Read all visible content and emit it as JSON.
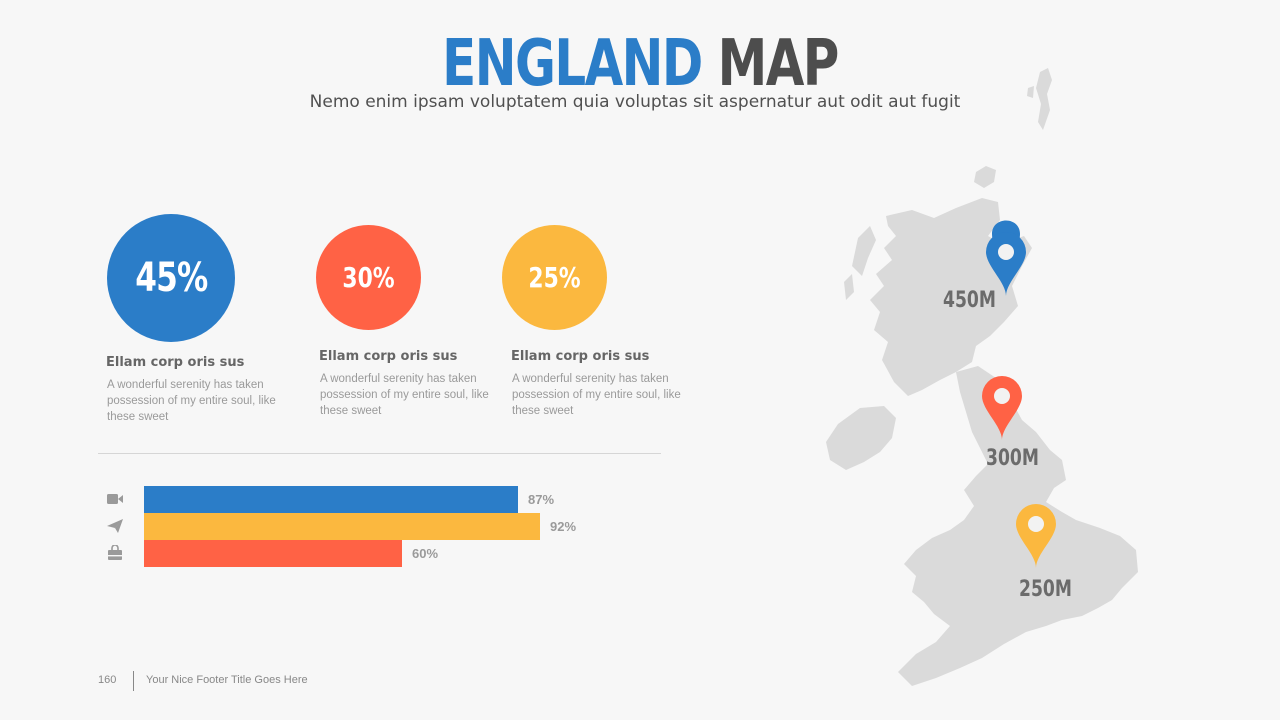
{
  "header": {
    "title_word1": "ENGLAND",
    "title_word2": "MAP",
    "subtitle": "Nemo enim ipsam voluptatem quia voluptas sit aspernatur aut odit aut fugit"
  },
  "stats": [
    {
      "value": "45%",
      "heading": "Ellam corp oris sus",
      "description": "A wonderful serenity has taken possession of my entire soul, like these sweet",
      "color": "#2b7dc8"
    },
    {
      "value": "30%",
      "heading": "Ellam corp oris sus",
      "description": "A wonderful serenity has taken possession of my entire soul, like these sweet",
      "color": "#ff6245"
    },
    {
      "value": "25%",
      "heading": "Ellam corp oris sus",
      "description": "A wonderful serenity has taken possession of my entire soul, like these sweet",
      "color": "#fbb83f"
    }
  ],
  "bars": [
    {
      "icon": "video-camera-icon",
      "label": "87%",
      "value": 87,
      "color": "#2b7dc8"
    },
    {
      "icon": "paper-plane-icon",
      "label": "92%",
      "value": 92,
      "color": "#fbb83f"
    },
    {
      "icon": "shopping-bag-icon",
      "label": "60%",
      "value": 60,
      "color": "#ff6245"
    }
  ],
  "map": {
    "pins": [
      {
        "label": "450M",
        "color": "#2b7dc8"
      },
      {
        "label": "300M",
        "color": "#ff6245"
      },
      {
        "label": "250M",
        "color": "#fbb83f"
      }
    ]
  },
  "footer": {
    "page_number": "160",
    "title": "Your Nice Footer Title Goes Here"
  }
}
